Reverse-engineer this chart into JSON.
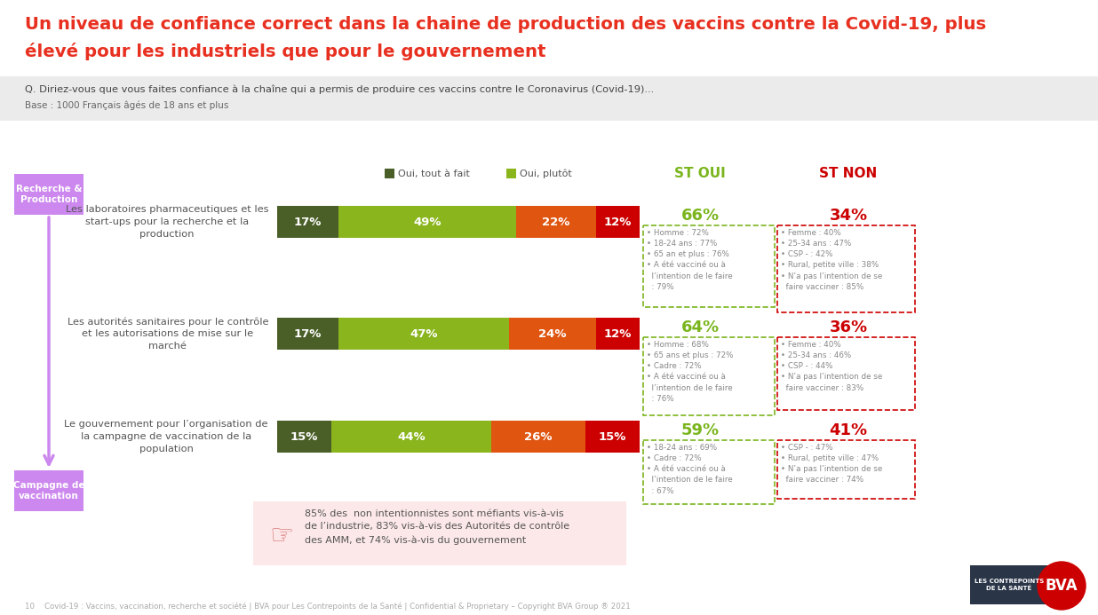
{
  "title_line1": "Un niveau de confiance correct dans la chaine de production des vaccins contre la Covid-19, plus",
  "title_line2": "élevé pour les industriels que pour le gouvernement",
  "subtitle": "Q. Diriez-vous que vous faites confiance à la chaîne qui a permis de produire ces vaccins contre le Coronavirus (Covid-19)...",
  "base": "Base : 1000 Français âgés de 18 ans et plus",
  "background_color": "#ffffff",
  "title_color": "#e83020",
  "subtitle_bg": "#ebebeb",
  "bars": [
    {
      "label": "Les laboratoires pharmaceutiques et les\nstart-ups pour la recherche et la\nproduction",
      "values": [
        17,
        49,
        22,
        12
      ],
      "st_oui": "66%",
      "st_non": "34%",
      "oui_details": "• Homme : 72%\n• 18-24 ans : 77%\n• 65 an et plus : 76%\n• A été vacciné ou à\n  l’intention de le faire\n  : 79%",
      "non_details": "• Femme : 40%\n• 25-34 ans : 47%\n• CSP - : 42%\n• Rural, petite ville : 38%\n• N’a pas l’intention de se\n  faire vacciner : 85%"
    },
    {
      "label": "Les autorités sanitaires pour le contrôle\net les autorisations de mise sur le\nmarché",
      "values": [
        17,
        47,
        24,
        12
      ],
      "st_oui": "64%",
      "st_non": "36%",
      "oui_details": "• Homme : 68%\n• 65 ans et plus : 72%\n• Cadre : 72%\n• A été vacciné ou à\n  l’intention de le faire\n  : 76%",
      "non_details": "• Femme : 40%\n• 25-34 ans : 46%\n• CSP - : 44%\n• N’a pas l’intention de se\n  faire vacciner : 83%"
    },
    {
      "label": "Le gouvernement pour l’organisation de\nla campagne de vaccination de la\npopulation",
      "values": [
        15,
        44,
        26,
        15
      ],
      "st_oui": "59%",
      "st_non": "41%",
      "oui_details": "• 18-24 ans : 69%\n• Cadre : 72%\n• A été vacciné ou à\n  l’intention de le faire\n  : 67%",
      "non_details": "• CSP - : 47%\n• Rural, petite ville : 47%\n• N’a pas l’intention de se\n  faire vacciner : 74%"
    }
  ],
  "bar_colors": [
    "#4a5e27",
    "#8ab51d",
    "#e05510",
    "#cc0000"
  ],
  "legend_labels": [
    "Oui, tout à fait",
    "Oui, plutôt"
  ],
  "st_oui_color": "#7ab51d",
  "st_non_color": "#cc0000",
  "category_color": "#cc88ee",
  "arrow_color": "#cc88ee",
  "note_text": "85% des  non intentionnistes sont méfiants vis-à-vis\nde l’industrie, 83% vis-à-vis des Autorités de contrôle\ndes AMM, et 74% vis-à-vis du gouvernement",
  "footer": "10    Covid-19 : Vaccins, vaccination, recherche et société | BVA pour Les Contrepoints de la Santé | Confidential & Proprietary – Copyright BVA Group ® 2021"
}
